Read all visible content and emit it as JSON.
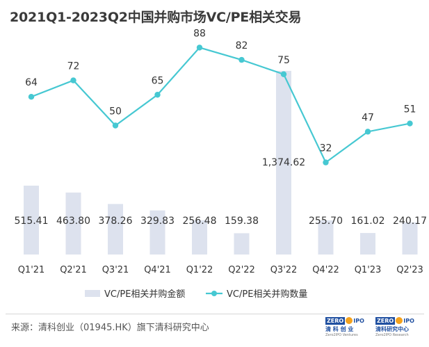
{
  "page": {
    "title": "2021Q1-2023Q2中国并购市场VC/PE相关交易"
  },
  "chart_data": {
    "type": "bar+line",
    "title": "2021Q1-2023Q2中国并购市场VC/PE相关交易",
    "categories": [
      "Q1'21",
      "Q2'21",
      "Q3'21",
      "Q4'21",
      "Q1'22",
      "Q2'22",
      "Q3'22",
      "Q4'22",
      "Q1'23",
      "Q2'23"
    ],
    "series": [
      {
        "name": "VC/PE相关并购金额",
        "type": "bar",
        "axis": "left",
        "values": [
          515.41,
          463.8,
          378.26,
          329.83,
          256.48,
          159.38,
          1374.62,
          255.7,
          161.02,
          240.17
        ],
        "labels": [
          "515.41",
          "463.80",
          "378.26",
          "329.83",
          "256.48",
          "159.38",
          "1,374.62",
          "255.70",
          "161.02",
          "240.17"
        ],
        "color": "#dde2ee"
      },
      {
        "name": "VC/PE相关并购数量",
        "type": "line",
        "axis": "right",
        "values": [
          64,
          72,
          50,
          65,
          88,
          82,
          75,
          32,
          47,
          51
        ],
        "labels": [
          "64",
          "72",
          "50",
          "65",
          "88",
          "82",
          "75",
          "32",
          "47",
          "51"
        ],
        "color": "#46c8d2"
      }
    ],
    "xlabel": "",
    "ylabel": "",
    "bar_ylim": [
      0,
      1400
    ],
    "line_ylim": [
      0,
      100
    ],
    "grid": false,
    "legend_position": "bottom"
  },
  "footer": {
    "source": "来源：清科创业（01945.HK）旗下清科研究中心"
  },
  "logos": [
    {
      "box": "ZERO",
      "tail": "IPO",
      "name": "清 科 创 业",
      "en": "Zero2IPO Ventures"
    },
    {
      "box": "ZERO",
      "tail": "IPO",
      "name": "清科研究中心",
      "en": "Zero2IPO Research"
    }
  ]
}
